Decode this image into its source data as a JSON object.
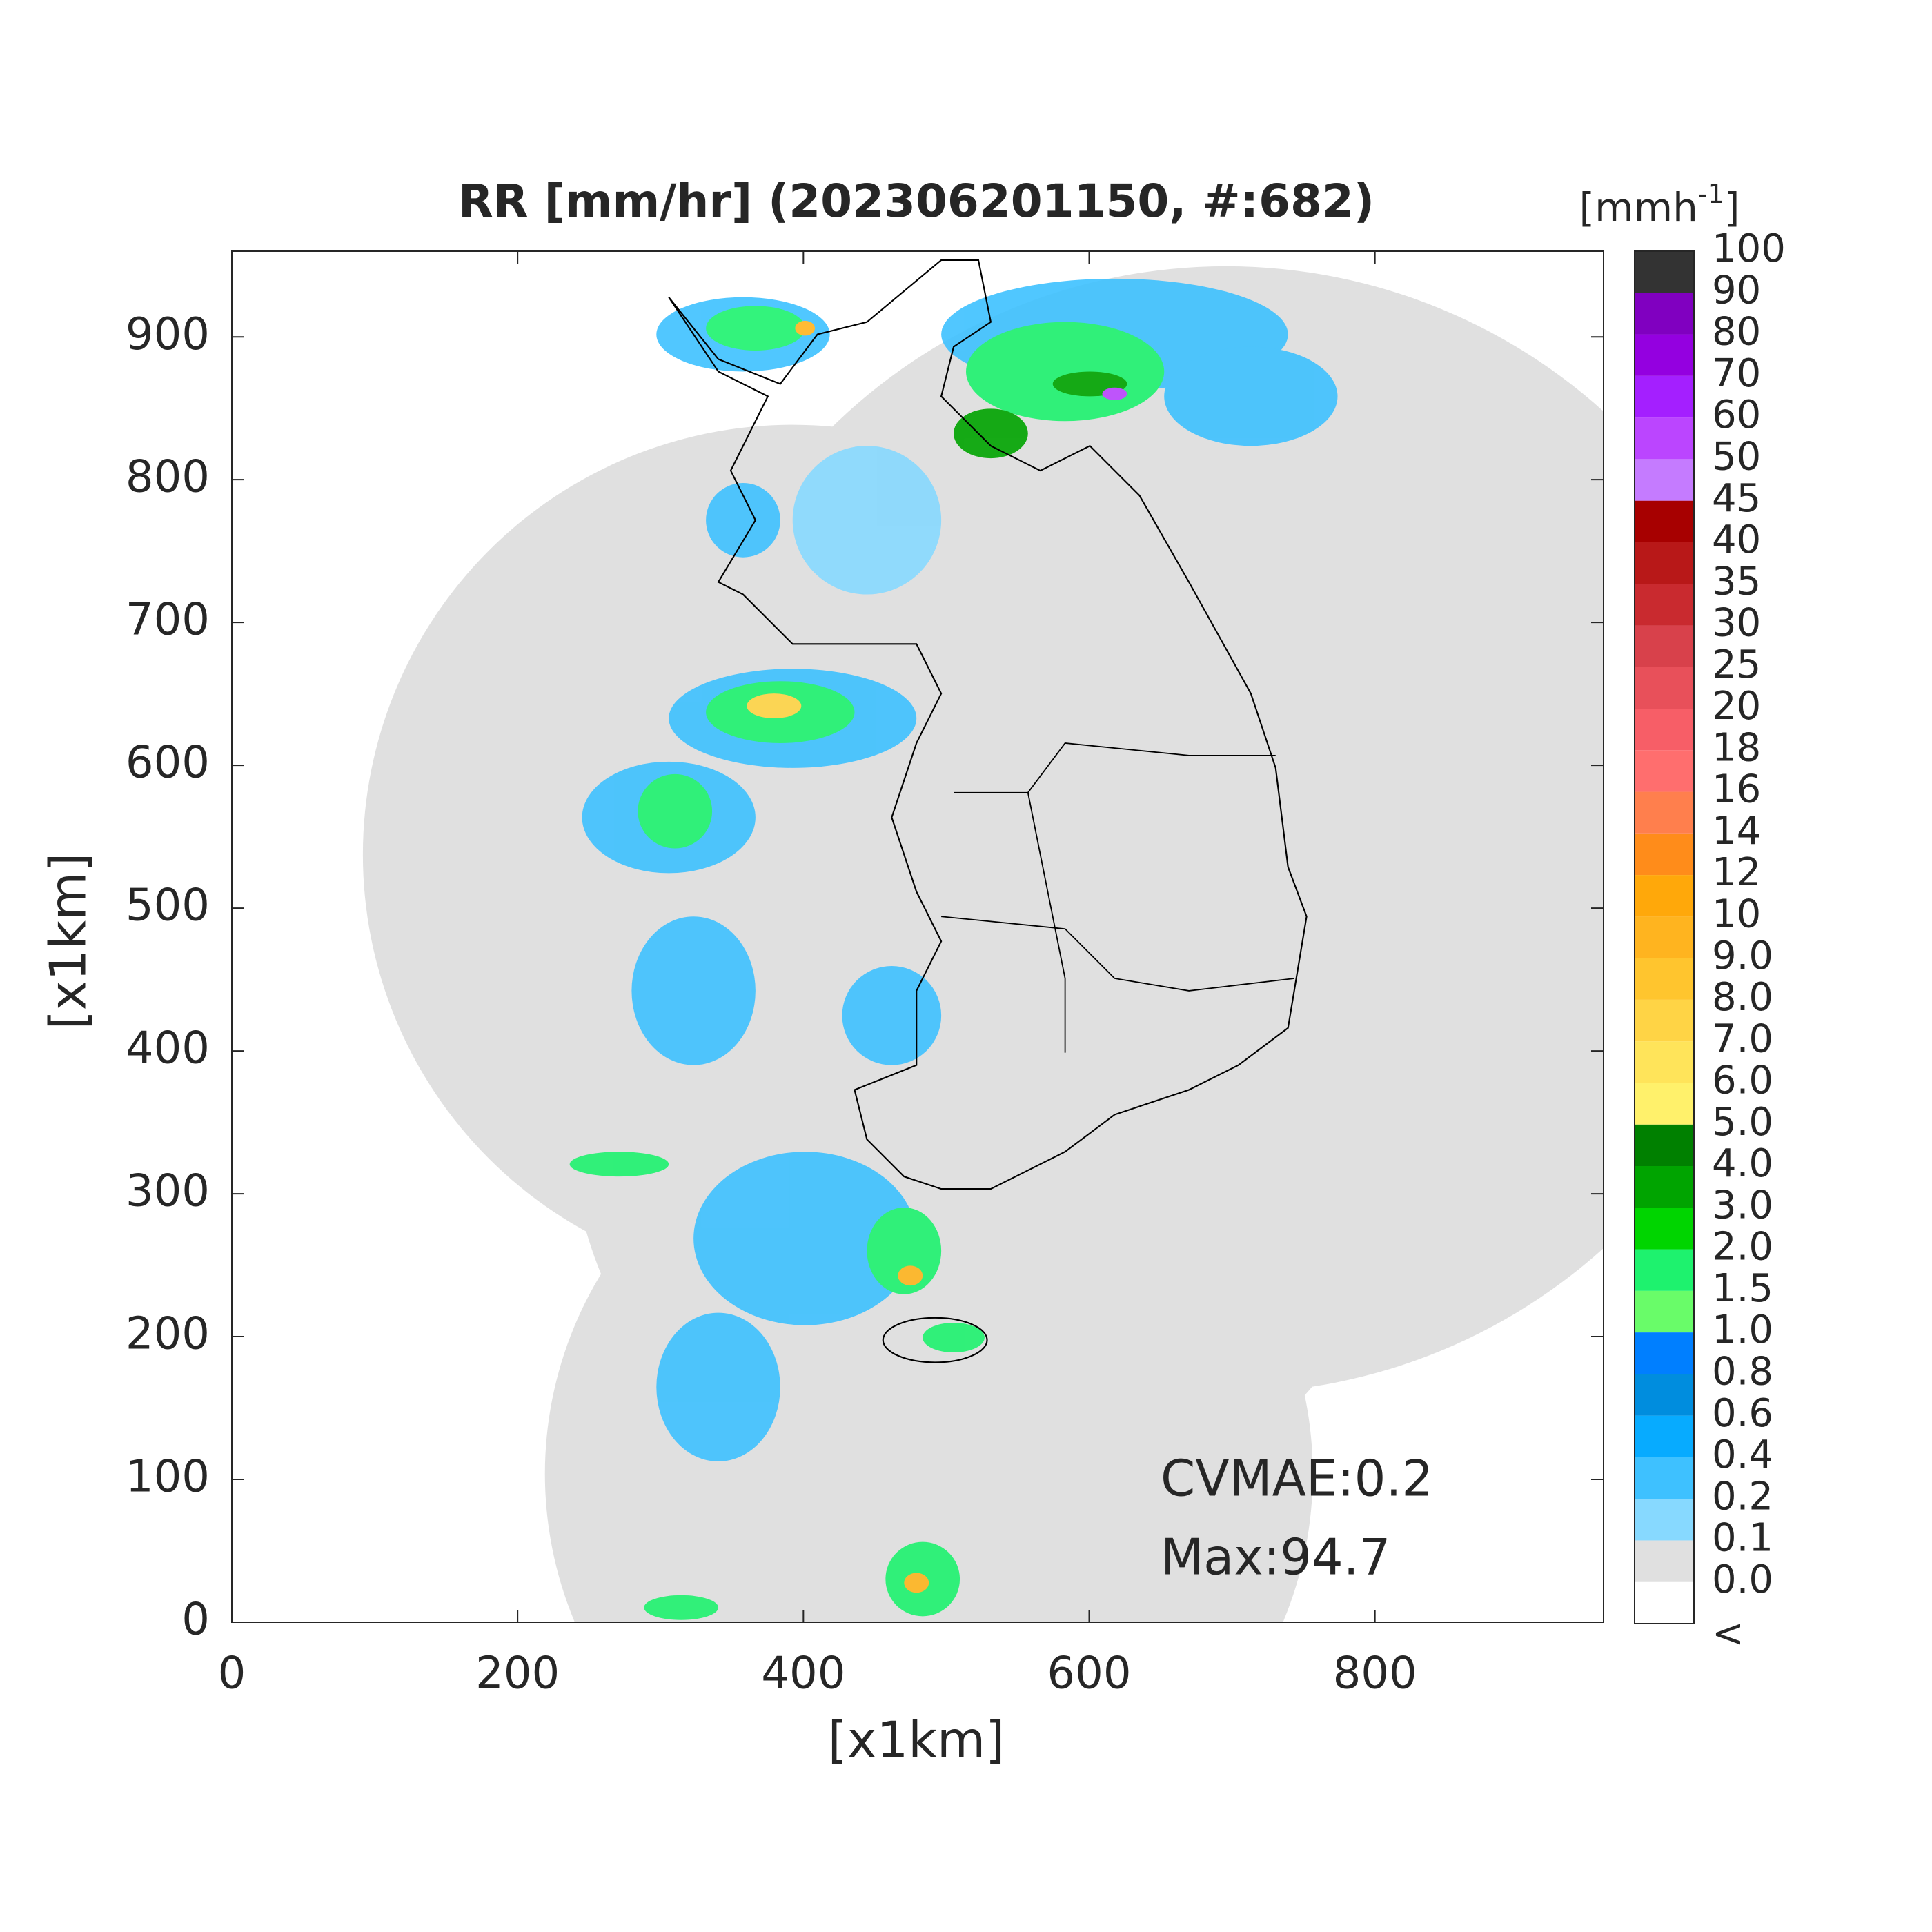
{
  "chart_data": {
    "type": "map",
    "title": "RR [mm/hr] (202306201150, #:682)",
    "xlabel": "[x1km]",
    "ylabel": "[x1km]",
    "xlim": [
      0,
      960
    ],
    "ylim": [
      0,
      960
    ],
    "xticks": [
      0,
      200,
      400,
      600,
      800
    ],
    "yticks": [
      0,
      100,
      200,
      300,
      400,
      500,
      600,
      700,
      800,
      900
    ],
    "annotations": [
      "CVMAE:0.2",
      "Max:94.7"
    ],
    "colorbar": {
      "unit_label": "[mmh",
      "unit_exponent": "-1",
      "unit_close": "]",
      "labels": [
        "<",
        "0.0",
        "0.1",
        "0.2",
        "0.4",
        "0.6",
        "0.8",
        "1.0",
        "1.5",
        "2.0",
        "3.0",
        "4.0",
        "5.0",
        "6.0",
        "7.0",
        "8.0",
        "9.0",
        "10",
        "12",
        "14",
        "16",
        "18",
        "20",
        "25",
        "30",
        "35",
        "40",
        "45",
        "50",
        "60",
        "70",
        "80",
        "90",
        "100"
      ],
      "colors": [
        "#ffffff",
        "#e0e0e0",
        "#87d9ff",
        "#3ec1ff",
        "#07abff",
        "#008dde",
        "#007fff",
        "#69fc69",
        "#1ef26e",
        "#00d500",
        "#00a400",
        "#008000",
        "#fff16b",
        "#ffe45a",
        "#ffd445",
        "#ffc52e",
        "#ffb41f",
        "#ffa80a",
        "#ff8c1a",
        "#ff7f4d",
        "#ff6e6e",
        "#f75e67",
        "#e8505a",
        "#d8414b",
        "#c92a2f",
        "#b81818",
        "#a70000",
        "#c57bff",
        "#bb45ff",
        "#a41fff",
        "#9400e0",
        "#8000c0",
        "#333333"
      ]
    }
  }
}
